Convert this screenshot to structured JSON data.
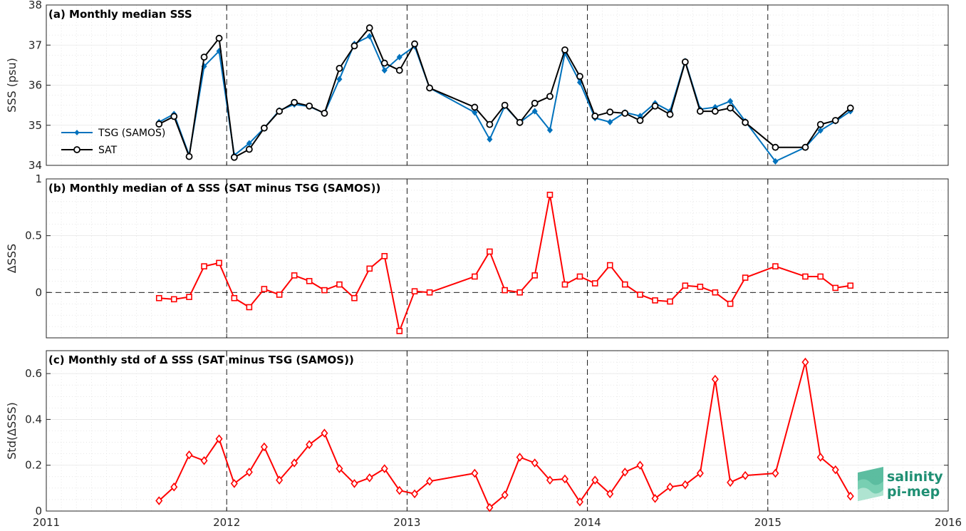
{
  "chart_data": [
    {
      "type": "line",
      "title": "(a) Monthly median SSS",
      "ylabel": "SSS (psu)",
      "xlim": [
        2011,
        2016
      ],
      "ylim": [
        34,
        38
      ],
      "yticks": [
        34,
        35,
        36,
        37,
        38
      ],
      "xticks": [
        2011,
        2012,
        2013,
        2014,
        2015,
        2016
      ],
      "grid": true,
      "legend": "left",
      "vlines": [
        2012,
        2013,
        2014,
        2015
      ],
      "series": [
        {
          "name": "TSG (SAMOS)",
          "color": "#0072BD",
          "marker": "diamond",
          "x": [
            2011.625,
            2011.708,
            2011.792,
            2011.875,
            2011.958,
            2012.042,
            2012.125,
            2012.208,
            2012.292,
            2012.375,
            2012.458,
            2012.542,
            2012.625,
            2012.708,
            2012.792,
            2012.875,
            2012.958,
            2013.042,
            2013.125,
            2013.375,
            2013.458,
            2013.542,
            2013.625,
            2013.708,
            2013.792,
            2013.875,
            2013.958,
            2014.042,
            2014.125,
            2014.208,
            2014.292,
            2014.375,
            2014.458,
            2014.542,
            2014.625,
            2014.708,
            2014.792,
            2014.875,
            2015.042,
            2015.208,
            2015.292,
            2015.375,
            2015.458
          ],
          "y": [
            35.08,
            35.28,
            34.25,
            36.47,
            36.85,
            34.25,
            34.55,
            34.93,
            35.37,
            35.52,
            35.47,
            35.3,
            36.15,
            37.03,
            37.22,
            36.37,
            36.7,
            36.97,
            35.93,
            35.32,
            34.65,
            35.48,
            35.07,
            35.35,
            34.88,
            36.8,
            36.07,
            35.18,
            35.08,
            35.32,
            35.23,
            35.55,
            35.35,
            36.6,
            35.4,
            35.45,
            35.6,
            35.1,
            34.1,
            34.45,
            34.87,
            35.1,
            35.35
          ]
        },
        {
          "name": "SAT",
          "color": "#000000",
          "marker": "circle",
          "x": [
            2011.625,
            2011.708,
            2011.792,
            2011.875,
            2011.958,
            2012.042,
            2012.125,
            2012.208,
            2012.292,
            2012.375,
            2012.458,
            2012.542,
            2012.625,
            2012.708,
            2012.792,
            2012.875,
            2012.958,
            2013.042,
            2013.125,
            2013.375,
            2013.458,
            2013.542,
            2013.625,
            2013.708,
            2013.792,
            2013.875,
            2013.958,
            2014.042,
            2014.125,
            2014.208,
            2014.292,
            2014.375,
            2014.458,
            2014.542,
            2014.625,
            2014.708,
            2014.792,
            2014.875,
            2015.042,
            2015.208,
            2015.292,
            2015.375,
            2015.458
          ],
          "y": [
            35.03,
            35.22,
            34.22,
            36.7,
            37.17,
            34.2,
            34.4,
            34.93,
            35.35,
            35.57,
            35.48,
            35.3,
            36.42,
            36.98,
            37.43,
            36.55,
            36.37,
            37.03,
            35.93,
            35.45,
            35.02,
            35.5,
            35.07,
            35.55,
            35.72,
            36.88,
            36.22,
            35.23,
            35.33,
            35.3,
            35.12,
            35.48,
            35.27,
            36.58,
            35.35,
            35.35,
            35.43,
            35.07,
            34.45,
            34.45,
            35.02,
            35.12,
            35.43
          ]
        }
      ]
    },
    {
      "type": "line",
      "title": "(b) Monthly median of Δ SSS (SAT minus TSG (SAMOS))",
      "ylabel": "ΔSSS",
      "xlim": [
        2011,
        2016
      ],
      "ylim": [
        -0.4,
        1
      ],
      "yticks": [
        0,
        0.5,
        1
      ],
      "grid": true,
      "zero_line": true,
      "vlines": [
        2012,
        2013,
        2014,
        2015
      ],
      "series": [
        {
          "name": "",
          "color": "#FF0000",
          "marker": "square",
          "x": [
            2011.625,
            2011.708,
            2011.792,
            2011.875,
            2011.958,
            2012.042,
            2012.125,
            2012.208,
            2012.292,
            2012.375,
            2012.458,
            2012.542,
            2012.625,
            2012.708,
            2012.792,
            2012.875,
            2012.958,
            2013.042,
            2013.125,
            2013.375,
            2013.458,
            2013.542,
            2013.625,
            2013.708,
            2013.792,
            2013.875,
            2013.958,
            2014.042,
            2014.125,
            2014.208,
            2014.292,
            2014.375,
            2014.458,
            2014.542,
            2014.625,
            2014.708,
            2014.792,
            2014.875,
            2015.042,
            2015.208,
            2015.292,
            2015.375,
            2015.458
          ],
          "y": [
            -0.05,
            -0.06,
            -0.04,
            0.23,
            0.26,
            -0.05,
            -0.13,
            0.03,
            -0.02,
            0.15,
            0.1,
            0.02,
            0.07,
            -0.05,
            0.21,
            0.32,
            -0.34,
            0.01,
            0.0,
            0.14,
            0.36,
            0.02,
            0.0,
            0.15,
            0.86,
            0.07,
            0.14,
            0.08,
            0.24,
            0.07,
            -0.02,
            -0.07,
            -0.08,
            0.06,
            0.05,
            0.0,
            -0.1,
            0.13,
            0.23,
            0.14,
            0.14,
            0.04,
            0.06
          ]
        }
      ]
    },
    {
      "type": "line",
      "title": "(c) Monthly std of Δ SSS (SAT minus TSG (SAMOS))",
      "ylabel": "Std(ΔSSS)",
      "xlim": [
        2011,
        2016
      ],
      "ylim": [
        0,
        0.7
      ],
      "yticks": [
        0,
        0.2,
        0.4,
        0.6
      ],
      "xticks": [
        2011,
        2012,
        2013,
        2014,
        2015,
        2016
      ],
      "grid": true,
      "vlines": [
        2012,
        2013,
        2014,
        2015
      ],
      "series": [
        {
          "name": "",
          "color": "#FF0000",
          "marker": "diamond-open",
          "x": [
            2011.625,
            2011.708,
            2011.792,
            2011.875,
            2011.958,
            2012.042,
            2012.125,
            2012.208,
            2012.292,
            2012.375,
            2012.458,
            2012.542,
            2012.625,
            2012.708,
            2012.792,
            2012.875,
            2012.958,
            2013.042,
            2013.125,
            2013.375,
            2013.458,
            2013.542,
            2013.625,
            2013.708,
            2013.792,
            2013.875,
            2013.958,
            2014.042,
            2014.125,
            2014.208,
            2014.292,
            2014.375,
            2014.458,
            2014.542,
            2014.625,
            2014.708,
            2014.792,
            2014.875,
            2015.042,
            2015.208,
            2015.292,
            2015.375,
            2015.458
          ],
          "y": [
            0.045,
            0.105,
            0.245,
            0.22,
            0.315,
            0.12,
            0.17,
            0.28,
            0.135,
            0.21,
            0.29,
            0.34,
            0.185,
            0.12,
            0.145,
            0.185,
            0.09,
            0.075,
            0.13,
            0.165,
            0.015,
            0.07,
            0.235,
            0.21,
            0.135,
            0.14,
            0.04,
            0.135,
            0.075,
            0.17,
            0.2,
            0.055,
            0.105,
            0.115,
            0.165,
            0.575,
            0.125,
            0.155,
            0.165,
            0.65,
            0.235,
            0.18,
            0.065
          ]
        }
      ]
    }
  ],
  "logo": {
    "line1": "salinity",
    "line2": "pi-mep"
  },
  "colors": {
    "tsg": "#0072BD",
    "sat": "#000000",
    "delta": "#FF0000",
    "logo": "#1f8f73"
  }
}
